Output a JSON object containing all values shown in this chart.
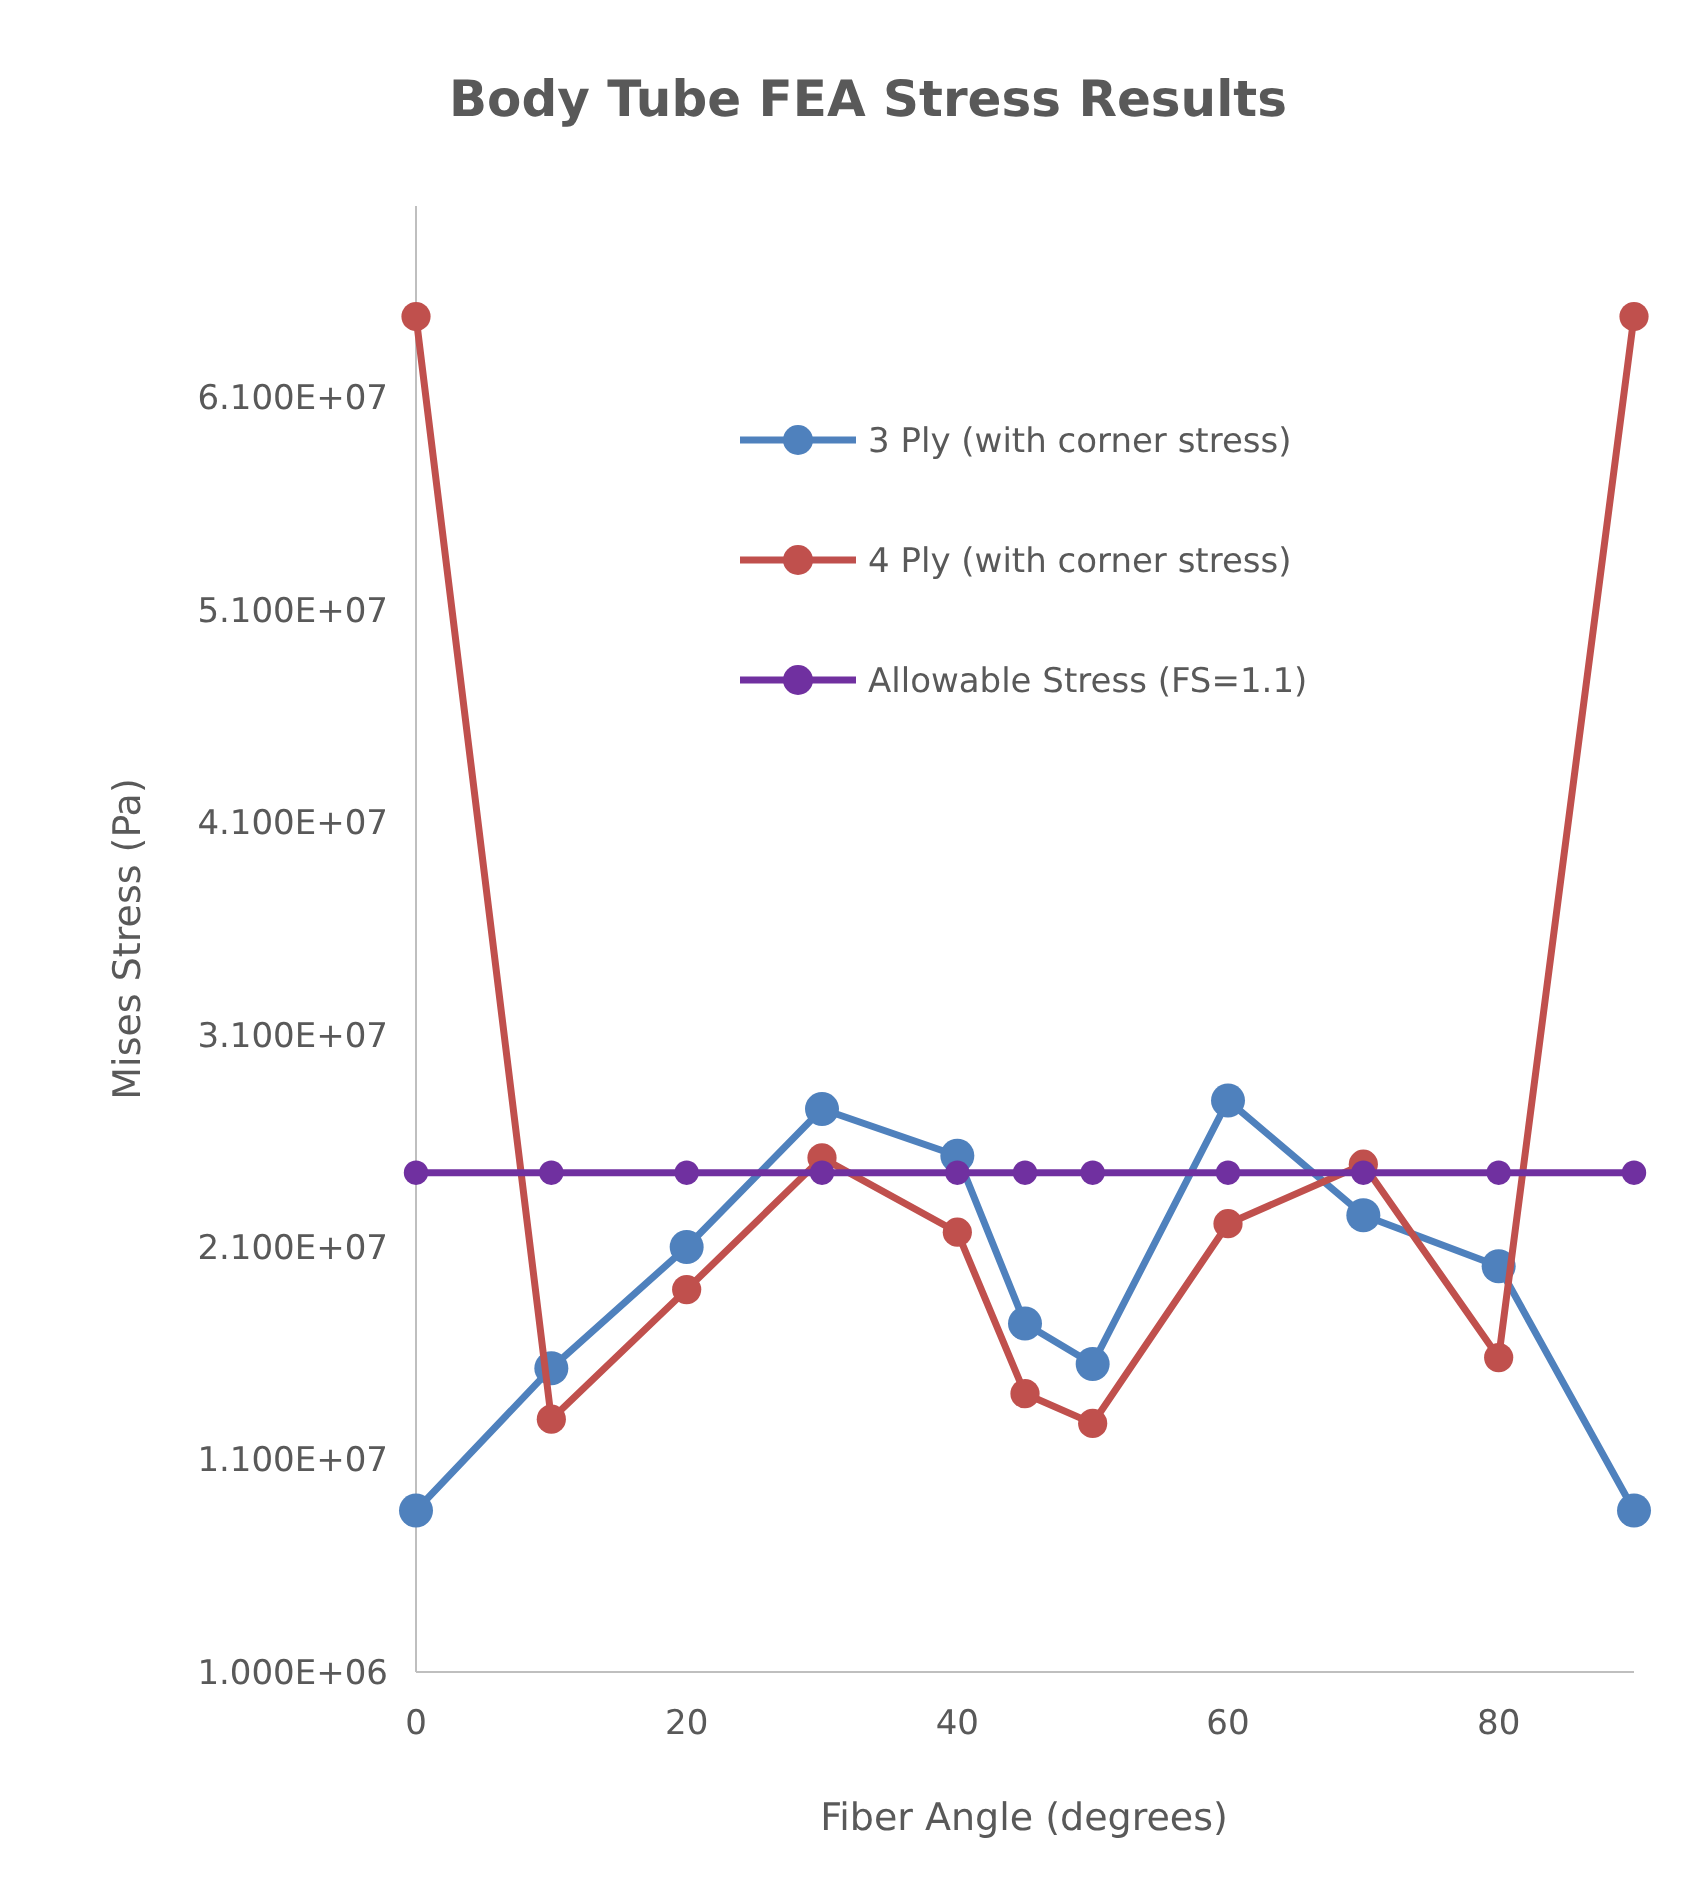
{
  "chart_data": {
    "type": "line",
    "title": "Body Tube FEA Stress Results",
    "xlabel": "Fiber Angle (degrees)",
    "ylabel": "Mises Stress (Pa)",
    "x": [
      0,
      10,
      20,
      30,
      40,
      45,
      50,
      60,
      70,
      80,
      90
    ],
    "xlim": [
      0,
      90
    ],
    "xticks": [
      0,
      20,
      40,
      60,
      80
    ],
    "ylim": [
      1000000,
      70000000
    ],
    "yticks": [
      {
        "value": 1000000,
        "label": "1.000E+06"
      },
      {
        "value": 11000000,
        "label": "1.100E+07"
      },
      {
        "value": 21000000,
        "label": "2.100E+07"
      },
      {
        "value": 31000000,
        "label": "3.100E+07"
      },
      {
        "value": 41000000,
        "label": "4.100E+07"
      },
      {
        "value": 51000000,
        "label": "5.100E+07"
      },
      {
        "value": 61000000,
        "label": "6.100E+07"
      }
    ],
    "series": [
      {
        "name": "3 Ply (with corner stress)",
        "color": "#4f81bd",
        "values": [
          8600000,
          15300000,
          21000000,
          27500000,
          25300000,
          17400000,
          15500000,
          27900000,
          22500000,
          20100000,
          8600000
        ]
      },
      {
        "name": "4 Ply (with corner stress)",
        "color": "#c0504d",
        "values": [
          64800000,
          12900000,
          19000000,
          25200000,
          21700000,
          14100000,
          12700000,
          22100000,
          24900000,
          15800000,
          64800000
        ]
      },
      {
        "name": "Allowable Stress (FS=1.1)",
        "color": "#7030a0",
        "values": [
          24500000,
          24500000,
          24500000,
          24500000,
          24500000,
          24500000,
          24500000,
          24500000,
          24500000,
          24500000,
          24500000
        ]
      }
    ],
    "grid": false,
    "legend": "top right",
    "marker": "circle",
    "line_style": "solid"
  }
}
